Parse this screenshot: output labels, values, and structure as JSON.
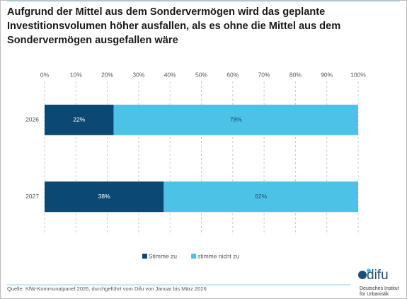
{
  "chart_data": {
    "type": "bar",
    "orientation": "horizontal",
    "stacked": true,
    "title": "Aufgrund der Mittel aus dem Sondervermögen wird das geplante Investitionsvolumen höher ausfallen, als es ohne die Mittel aus dem Sondervermögen ausgefallen wäre",
    "categories": [
      "2026",
      "2027"
    ],
    "series": [
      {
        "name": "Stimme zu",
        "color": "#0b4873",
        "label_color": "#ffffff",
        "values": [
          22,
          38
        ],
        "value_labels": [
          "22%",
          "38%"
        ]
      },
      {
        "name": "stimme nicht zu",
        "color": "#4cc3e6",
        "label_color": "#1d4a6a",
        "values": [
          78,
          62
        ],
        "value_labels": [
          "78%",
          "62%"
        ]
      }
    ],
    "xlim": [
      0,
      100
    ],
    "xticks": [
      {
        "value": 0,
        "label": "0%"
      },
      {
        "value": 10,
        "label": "10%"
      },
      {
        "value": 20,
        "label": "20%"
      },
      {
        "value": 30,
        "label": "30%"
      },
      {
        "value": 40,
        "label": "40%"
      },
      {
        "value": 50,
        "label": "50%"
      },
      {
        "value": 60,
        "label": "60%"
      },
      {
        "value": 70,
        "label": "70%"
      },
      {
        "value": 80,
        "label": "80%"
      },
      {
        "value": 90,
        "label": "90%"
      },
      {
        "value": 100,
        "label": "100%"
      }
    ],
    "grid": true,
    "legend": "bottom"
  },
  "source": "Quelle: KfW-Kommunalpanel 2026, durchgeführt vom Difu von Januar bis März 2026",
  "logo": {
    "name": "difu",
    "line1": "Deutsches Institut",
    "line2": "für Urbanistik"
  }
}
